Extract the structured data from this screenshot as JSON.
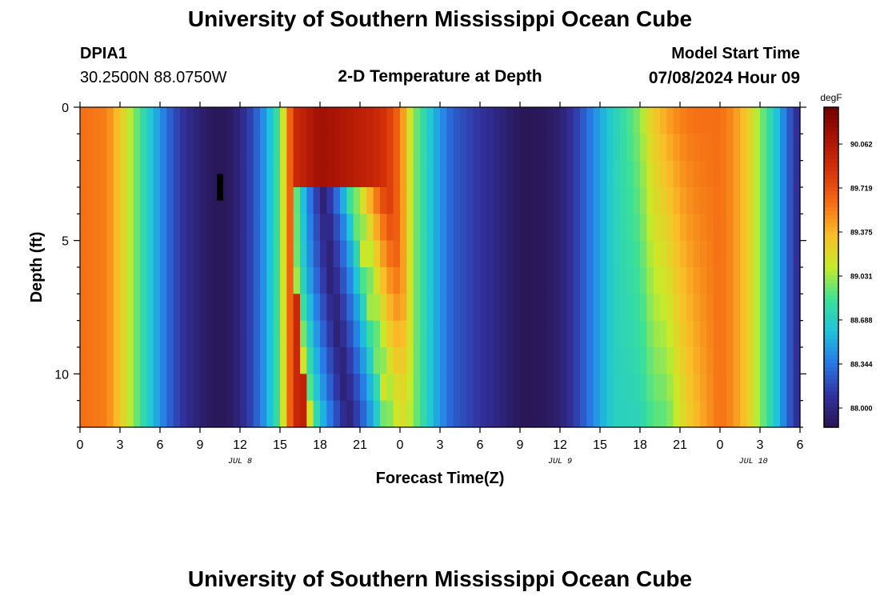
{
  "header": {
    "title": "University of Southern Mississippi Ocean Cube",
    "station_id": "DPIA1",
    "station_coords": "30.2500N  88.0750W",
    "subtitle": "2-D Temperature at Depth",
    "start_label": "Model Start Time",
    "start_value": "07/08/2024 Hour 09"
  },
  "footer": {
    "title": "University of Southern Mississippi Ocean Cube"
  },
  "chart_data": {
    "type": "heatmap",
    "title": "2-D Temperature at Depth",
    "xlabel": "Forecast Time(Z)",
    "ylabel": "Depth (ft)",
    "x_unit": "forecast hour from 07/08/2024 00Z",
    "xlim": [
      0,
      54
    ],
    "ylim": [
      0,
      12
    ],
    "y_inverted": true,
    "x_ticks": [
      0,
      3,
      6,
      9,
      12,
      15,
      18,
      21,
      24,
      27,
      30,
      33,
      36,
      39,
      42,
      45,
      48,
      51,
      54
    ],
    "x_tick_labels": [
      "0",
      "3",
      "6",
      "9",
      "12",
      "15",
      "18",
      "21",
      "0",
      "3",
      "6",
      "9",
      "12",
      "15",
      "18",
      "21",
      "0",
      "3",
      "6"
    ],
    "y_ticks": [
      0,
      5,
      10
    ],
    "y_tick_labels": [
      "0",
      "5",
      "10"
    ],
    "date_labels": [
      {
        "x": 12,
        "label": "JUL 8"
      },
      {
        "x": 36,
        "label": "JUL 9"
      },
      {
        "x": 50.5,
        "label": "JUL 10"
      }
    ],
    "colorbar": {
      "unit": "degF",
      "min": 87.85,
      "max": 90.35,
      "ticks": [
        88.0,
        88.344,
        88.688,
        89.031,
        89.375,
        89.719,
        90.062
      ],
      "tick_labels": [
        "88.000",
        "88.344",
        "88.688",
        "89.031",
        "89.375",
        "89.719",
        "90.062"
      ]
    },
    "profile": {
      "time_hours": [
        0,
        2,
        3,
        4,
        5,
        6,
        7,
        8,
        9,
        10,
        11,
        12,
        13,
        14,
        15,
        16,
        18,
        20,
        22,
        23,
        24,
        25,
        26,
        27,
        28,
        30,
        32,
        33,
        33.7,
        35,
        36,
        37,
        38,
        39,
        40,
        42,
        43,
        44,
        45,
        46,
        48,
        49,
        50,
        51,
        52,
        53,
        54
      ],
      "temp_degF": [
        89.6,
        89.55,
        89.3,
        89.0,
        88.7,
        88.45,
        88.2,
        88.05,
        87.95,
        87.88,
        87.88,
        88.0,
        88.2,
        88.5,
        88.9,
        89.9,
        90.15,
        90.05,
        89.95,
        89.85,
        89.6,
        89.0,
        88.7,
        88.45,
        88.25,
        88.1,
        87.95,
        87.88,
        87.87,
        87.9,
        87.95,
        88.1,
        88.3,
        88.5,
        88.7,
        89.0,
        89.3,
        89.45,
        89.55,
        89.6,
        89.6,
        89.5,
        89.3,
        89.0,
        88.7,
        88.3,
        88.0
      ],
      "surface_warming_degF": [
        0.6,
        0.9,
        1.3,
        1.8,
        2.0,
        2.0,
        1.8,
        1.4,
        0.9,
        0.6,
        0.35,
        0.1,
        0.0,
        0.0,
        0.0,
        0.0,
        0.0,
        0.0,
        0.0,
        0.0,
        0.0,
        0.0,
        0.0,
        0.0,
        0.0,
        0.0,
        0.0,
        0.0,
        0.0,
        0.0,
        0.0,
        0.0
      ],
      "surface_warming_depth_ft": [
        0.0,
        0.7,
        1.5,
        2.5,
        3.5,
        4.5,
        5.5,
        6.5,
        7.5,
        8.5,
        9.5,
        10.5,
        11.5,
        12.0,
        12.0,
        12.0,
        12.0,
        12.0,
        12.0,
        12.0,
        12.0,
        12.0,
        12.0,
        12.0,
        12.0,
        12.0,
        12.0,
        12.0,
        12.0,
        12.0,
        12.0,
        12.0
      ],
      "cool_intrusion_start_hour": [
        15.5,
        15.7,
        15.9,
        16.0,
        16.0,
        16.0,
        16.1,
        16.3,
        16.5,
        16.7,
        16.9,
        17.2
      ],
      "cool_intrusion_end_hour": [
        15.5,
        15.7,
        15.9,
        20.6,
        21.0,
        21.3,
        21.6,
        21.9,
        22.2,
        22.5,
        22.8,
        23.0
      ],
      "cool_intrusion_depth_ft": [
        0.5,
        1.5,
        2.5,
        3.5,
        4.5,
        5.5,
        6.5,
        7.5,
        8.5,
        9.5,
        10.5,
        11.5
      ]
    },
    "missing_marker": {
      "x": 10.5,
      "depth_from": 2.5,
      "depth_to": 3.5
    }
  }
}
